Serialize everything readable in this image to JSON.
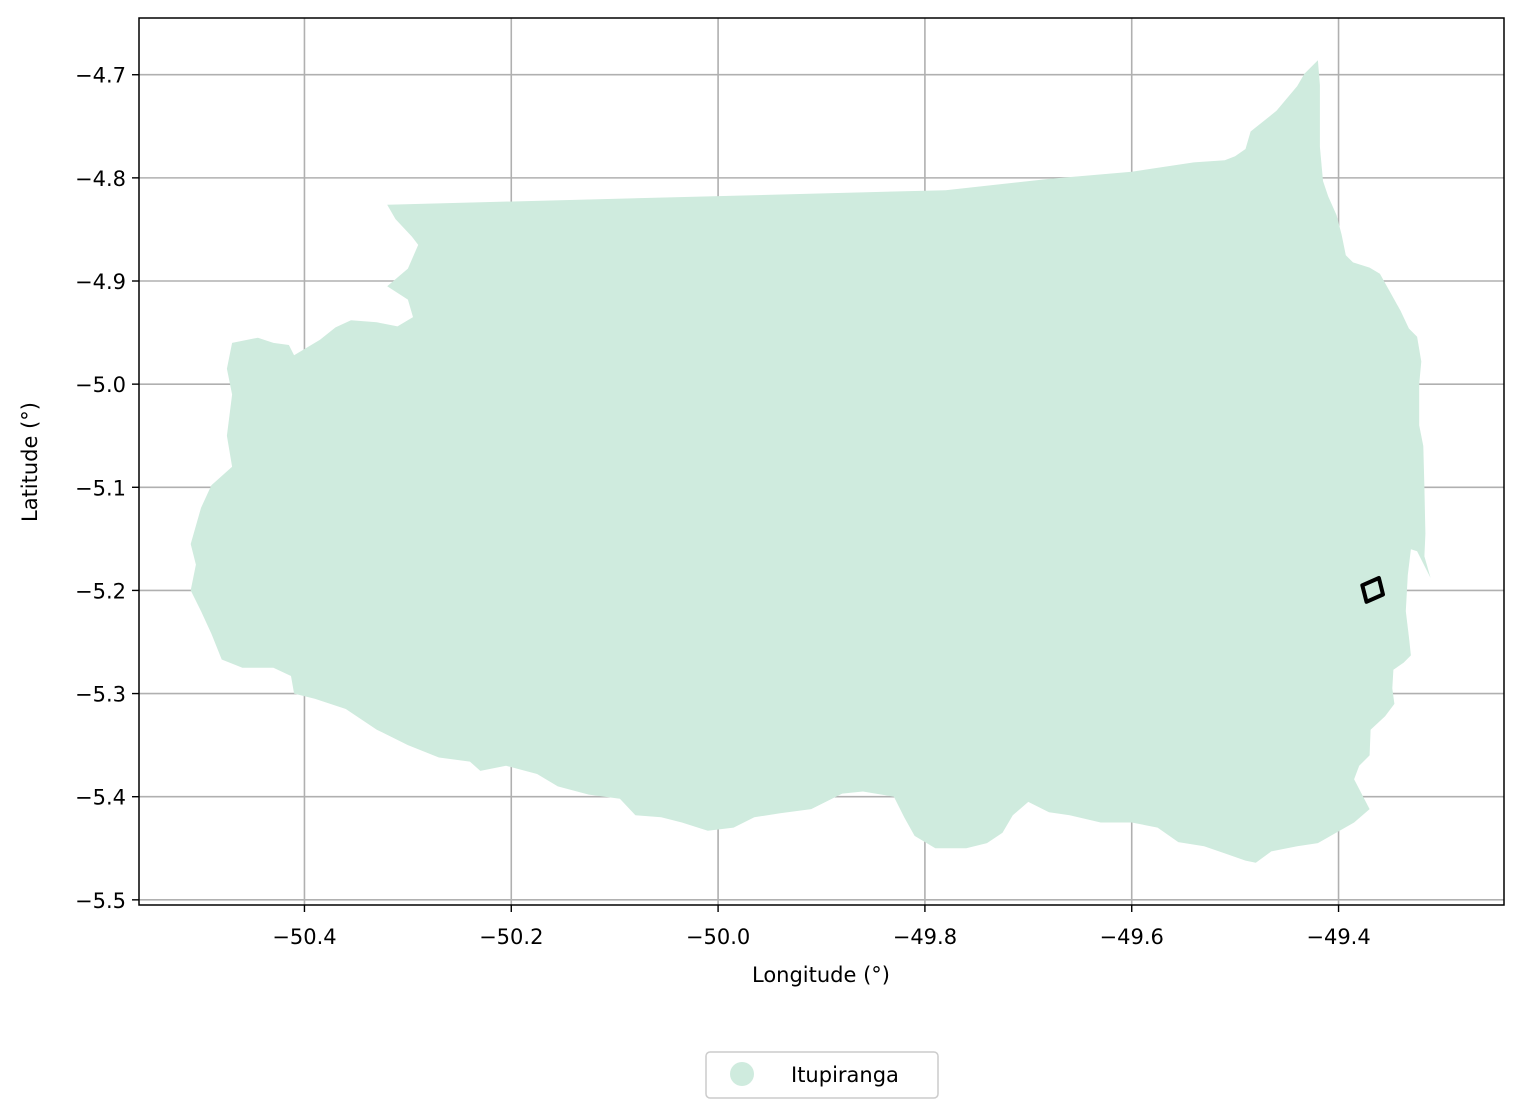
{
  "chart_data": {
    "type": "map",
    "xlabel": "Longitude (°)",
    "ylabel": "Latitude (°)",
    "xlim": [
      -50.56,
      -49.24
    ],
    "ylim": [
      -5.505,
      -4.645
    ],
    "grid": true,
    "x_ticks": [
      {
        "value": -50.4,
        "label": "−50.4"
      },
      {
        "value": -50.2,
        "label": "−50.2"
      },
      {
        "value": -50.0,
        "label": "−50.0"
      },
      {
        "value": -49.8,
        "label": "−49.8"
      },
      {
        "value": -49.6,
        "label": "−49.6"
      },
      {
        "value": -49.4,
        "label": "−49.4"
      }
    ],
    "y_ticks": [
      {
        "value": -4.7,
        "label": "−4.7"
      },
      {
        "value": -4.8,
        "label": "−4.8"
      },
      {
        "value": -4.9,
        "label": "−4.9"
      },
      {
        "value": -5.0,
        "label": "−5.0"
      },
      {
        "value": -5.1,
        "label": "−5.1"
      },
      {
        "value": -5.2,
        "label": "−5.2"
      },
      {
        "value": -5.3,
        "label": "−5.3"
      },
      {
        "value": -5.4,
        "label": "−5.4"
      },
      {
        "value": -5.5,
        "label": "−5.5"
      }
    ],
    "legend": {
      "placement": "bottom-center",
      "entries": [
        {
          "label": "Itupiranga",
          "color": "#cfebde"
        }
      ]
    },
    "region": {
      "name": "Itupiranga",
      "fill": "#cfebde",
      "outline_lonlat": [
        [
          -50.32,
          -4.826
        ],
        [
          -49.78,
          -4.812
        ],
        [
          -49.68,
          -4.801
        ],
        [
          -49.6,
          -4.794
        ],
        [
          -49.54,
          -4.785
        ],
        [
          -49.51,
          -4.783
        ],
        [
          -49.5,
          -4.779
        ],
        [
          -49.49,
          -4.772
        ],
        [
          -49.485,
          -4.755
        ],
        [
          -49.46,
          -4.735
        ],
        [
          -49.44,
          -4.711
        ],
        [
          -49.433,
          -4.699
        ],
        [
          -49.42,
          -4.686
        ],
        [
          -49.418,
          -4.71
        ],
        [
          -49.418,
          -4.77
        ],
        [
          -49.415,
          -4.803
        ],
        [
          -49.41,
          -4.818
        ],
        [
          -49.402,
          -4.836
        ],
        [
          -49.397,
          -4.855
        ],
        [
          -49.393,
          -4.875
        ],
        [
          -49.386,
          -4.882
        ],
        [
          -49.37,
          -4.887
        ],
        [
          -49.36,
          -4.893
        ],
        [
          -49.35,
          -4.911
        ],
        [
          -49.34,
          -4.929
        ],
        [
          -49.332,
          -4.946
        ],
        [
          -49.324,
          -4.954
        ],
        [
          -49.32,
          -4.978
        ],
        [
          -49.322,
          -5.0
        ],
        [
          -49.322,
          -5.04
        ],
        [
          -49.318,
          -5.06
        ],
        [
          -49.317,
          -5.1
        ],
        [
          -49.316,
          -5.145
        ],
        [
          -49.317,
          -5.167
        ],
        [
          -49.311,
          -5.188
        ],
        [
          -49.316,
          -5.178
        ],
        [
          -49.324,
          -5.162
        ],
        [
          -49.33,
          -5.16
        ],
        [
          -49.333,
          -5.185
        ],
        [
          -49.335,
          -5.22
        ],
        [
          -49.332,
          -5.245
        ],
        [
          -49.33,
          -5.263
        ],
        [
          -49.337,
          -5.27
        ],
        [
          -49.347,
          -5.277
        ],
        [
          -49.348,
          -5.295
        ],
        [
          -49.346,
          -5.31
        ],
        [
          -49.355,
          -5.322
        ],
        [
          -49.369,
          -5.335
        ],
        [
          -49.37,
          -5.36
        ],
        [
          -49.38,
          -5.37
        ],
        [
          -49.385,
          -5.383
        ],
        [
          -49.37,
          -5.412
        ],
        [
          -49.385,
          -5.425
        ],
        [
          -49.42,
          -5.445
        ],
        [
          -49.44,
          -5.448
        ],
        [
          -49.465,
          -5.453
        ],
        [
          -49.48,
          -5.464
        ],
        [
          -49.49,
          -5.462
        ],
        [
          -49.51,
          -5.455
        ],
        [
          -49.53,
          -5.448
        ],
        [
          -49.555,
          -5.444
        ],
        [
          -49.575,
          -5.43
        ],
        [
          -49.6,
          -5.425
        ],
        [
          -49.63,
          -5.425
        ],
        [
          -49.66,
          -5.418
        ],
        [
          -49.68,
          -5.415
        ],
        [
          -49.7,
          -5.405
        ],
        [
          -49.715,
          -5.418
        ],
        [
          -49.725,
          -5.435
        ],
        [
          -49.74,
          -5.445
        ],
        [
          -49.76,
          -5.45
        ],
        [
          -49.79,
          -5.45
        ],
        [
          -49.81,
          -5.438
        ],
        [
          -49.82,
          -5.42
        ],
        [
          -49.83,
          -5.4
        ],
        [
          -49.86,
          -5.395
        ],
        [
          -49.88,
          -5.397
        ],
        [
          -49.91,
          -5.412
        ],
        [
          -49.94,
          -5.416
        ],
        [
          -49.965,
          -5.42
        ],
        [
          -49.985,
          -5.43
        ],
        [
          -50.01,
          -5.433
        ],
        [
          -50.035,
          -5.425
        ],
        [
          -50.055,
          -5.42
        ],
        [
          -50.08,
          -5.418
        ],
        [
          -50.095,
          -5.402
        ],
        [
          -50.125,
          -5.398
        ],
        [
          -50.155,
          -5.39
        ],
        [
          -50.175,
          -5.378
        ],
        [
          -50.205,
          -5.37
        ],
        [
          -50.23,
          -5.375
        ],
        [
          -50.24,
          -5.366
        ],
        [
          -50.27,
          -5.362
        ],
        [
          -50.3,
          -5.35
        ],
        [
          -50.33,
          -5.335
        ],
        [
          -50.36,
          -5.315
        ],
        [
          -50.39,
          -5.305
        ],
        [
          -50.41,
          -5.3
        ],
        [
          -50.413,
          -5.283
        ],
        [
          -50.43,
          -5.275
        ],
        [
          -50.46,
          -5.275
        ],
        [
          -50.48,
          -5.267
        ],
        [
          -50.49,
          -5.242
        ],
        [
          -50.5,
          -5.22
        ],
        [
          -50.51,
          -5.2
        ],
        [
          -50.505,
          -5.175
        ],
        [
          -50.51,
          -5.155
        ],
        [
          -50.5,
          -5.12
        ],
        [
          -50.49,
          -5.098
        ],
        [
          -50.47,
          -5.08
        ],
        [
          -50.475,
          -5.05
        ],
        [
          -50.47,
          -5.01
        ],
        [
          -50.475,
          -4.985
        ],
        [
          -50.47,
          -4.96
        ],
        [
          -50.445,
          -4.955
        ],
        [
          -50.43,
          -4.96
        ],
        [
          -50.415,
          -4.962
        ],
        [
          -50.41,
          -4.972
        ],
        [
          -50.385,
          -4.957
        ],
        [
          -50.37,
          -4.945
        ],
        [
          -50.355,
          -4.938
        ],
        [
          -50.33,
          -4.94
        ],
        [
          -50.31,
          -4.944
        ],
        [
          -50.295,
          -4.935
        ],
        [
          -50.3,
          -4.918
        ],
        [
          -50.32,
          -4.905
        ],
        [
          -50.3,
          -4.888
        ],
        [
          -50.29,
          -4.865
        ],
        [
          -50.296,
          -4.857
        ],
        [
          -50.312,
          -4.84
        ],
        [
          -50.32,
          -4.826
        ]
      ]
    },
    "marker": {
      "type": "quadrilateral",
      "color": "#000000",
      "corners_lonlat": [
        [
          -49.377,
          -5.195
        ],
        [
          -49.361,
          -5.188
        ],
        [
          -49.357,
          -5.204
        ],
        [
          -49.373,
          -5.211
        ]
      ]
    }
  }
}
